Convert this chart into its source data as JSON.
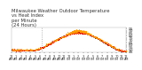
{
  "title": "Milwaukee Weather Outdoor Temperature\nvs Heat Index\nper Minute\n(24 Hours)",
  "title_fontsize": 3.8,
  "bg_color": "#ffffff",
  "temp_color": "#dd1100",
  "heat_color": "#ff9900",
  "dot_size": 0.4,
  "ylim": [
    44,
    96
  ],
  "xlim": [
    0,
    1440
  ],
  "ylabel_fontsize": 3.2,
  "xlabel_fontsize": 2.5,
  "vline_x": 380,
  "vline_color": "#999999",
  "vline_style": "dotted",
  "y_ticks": [
    45,
    50,
    55,
    60,
    65,
    70,
    75,
    80,
    85,
    90,
    95
  ],
  "temp_base": 52,
  "temp_low_min": 300,
  "temp_peak_min": 840,
  "temp_peak_val": 86,
  "temp_low_val": 46
}
